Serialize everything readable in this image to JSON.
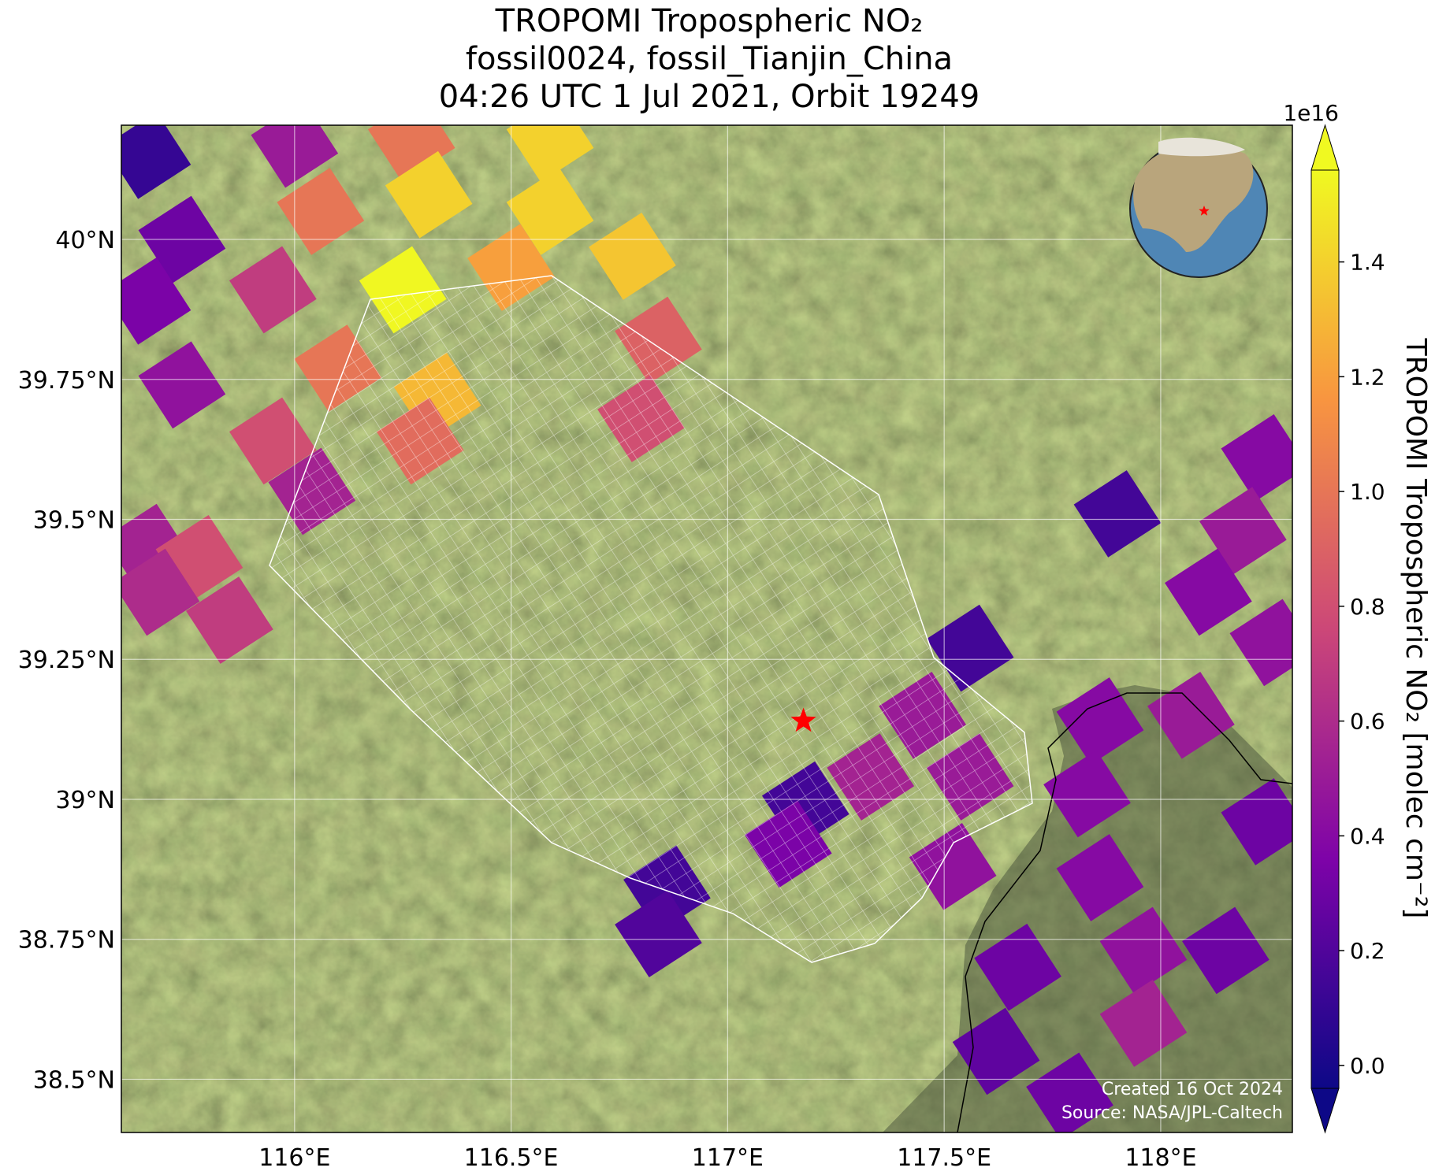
{
  "chart_data": {
    "type": "map",
    "title": [
      "TROPOMI Tropospheric NO₂",
      "fossil0024, fossil_Tianjin_China",
      "04:26 UTC 1 Jul 2021, Orbit 19249"
    ],
    "colormap": "plasma",
    "colorbar_label": "TROPOMI Tropospheric NO₂ [molec cm⁻²]",
    "colorbar_offset": "1e16",
    "clim": [
      -0.04,
      1.56
    ],
    "cticks": [
      {
        "value": 0,
        "label": "0.0"
      },
      0.2,
      0.4,
      0.6,
      0.8,
      {
        "value": 1,
        "label": "1.0"
      },
      1.2,
      1.4
    ],
    "xlim": [
      115.6,
      118.304
    ],
    "ylim": [
      38.405,
      40.204
    ],
    "xticks": [
      {
        "value": 116,
        "label": "116°E"
      },
      {
        "value": 116.5,
        "label": "116.5°E"
      },
      {
        "value": 117,
        "label": "117°E"
      },
      {
        "value": 117.5,
        "label": "117.5°E"
      },
      {
        "value": 118,
        "label": "118°E"
      }
    ],
    "yticks": [
      {
        "value": 38.5,
        "label": "38.5°N"
      },
      {
        "value": 38.75,
        "label": "38.75°N"
      },
      {
        "value": 39,
        "label": "39°N"
      },
      {
        "value": 39.25,
        "label": "39.25°N"
      },
      {
        "value": 39.5,
        "label": "39.5°N"
      },
      {
        "value": 39.75,
        "label": "39.75°N"
      },
      {
        "value": 40,
        "label": "40°N"
      }
    ],
    "grid": true,
    "x": [
      115.66,
      116.0,
      116.27,
      116.59,
      115.74,
      116.06,
      116.31,
      116.59,
      116.78,
      115.66,
      115.95,
      116.25,
      116.5,
      116.84,
      115.74,
      116.1,
      116.33,
      116.8,
      115.95,
      116.29,
      116.04,
      115.66,
      115.78,
      115.68,
      115.85,
      117.9,
      118.24,
      118.19,
      117.56,
      118.11,
      118.26,
      117.45,
      117.86,
      118.07,
      117.18,
      117.33,
      117.56,
      117.83,
      118.24,
      116.86,
      117.14,
      117.52,
      117.86,
      116.84,
      117.67,
      117.96,
      117.62,
      117.96,
      117.79,
      118.15
    ],
    "y": [
      40.15,
      40.17,
      40.18,
      40.18,
      40.0,
      40.05,
      40.08,
      40.05,
      39.97,
      39.89,
      39.91,
      39.91,
      39.95,
      39.82,
      39.74,
      39.77,
      39.72,
      39.68,
      39.64,
      39.64,
      39.55,
      39.45,
      39.43,
      39.37,
      39.32,
      39.51,
      39.61,
      39.48,
      39.27,
      39.37,
      39.28,
      39.15,
      39.14,
      39.15,
      38.99,
      39.04,
      39.04,
      39.01,
      38.96,
      38.84,
      38.92,
      38.88,
      38.86,
      38.76,
      38.7,
      38.73,
      38.55,
      38.6,
      38.47,
      38.73
    ],
    "values": [
      0.1,
      0.5,
      1.0,
      1.4,
      0.3,
      1.0,
      1.4,
      1.4,
      1.35,
      0.35,
      0.7,
      1.55,
      1.2,
      0.9,
      0.45,
      1.0,
      1.3,
      0.8,
      0.8,
      0.95,
      0.55,
      0.55,
      0.8,
      0.6,
      0.7,
      0.15,
      0.4,
      0.5,
      0.15,
      0.4,
      0.45,
      0.5,
      0.4,
      0.5,
      0.15,
      0.55,
      0.5,
      0.4,
      0.3,
      0.15,
      0.35,
      0.45,
      0.4,
      0.2,
      0.3,
      0.45,
      0.25,
      0.55,
      0.3,
      0.3
    ],
    "site": {
      "x": 117.175,
      "y": 39.14,
      "color": "#ff0000"
    },
    "annotations": [
      "Created 16 Oct 2024",
      "Source: NASA/JPL-Caltech"
    ]
  }
}
